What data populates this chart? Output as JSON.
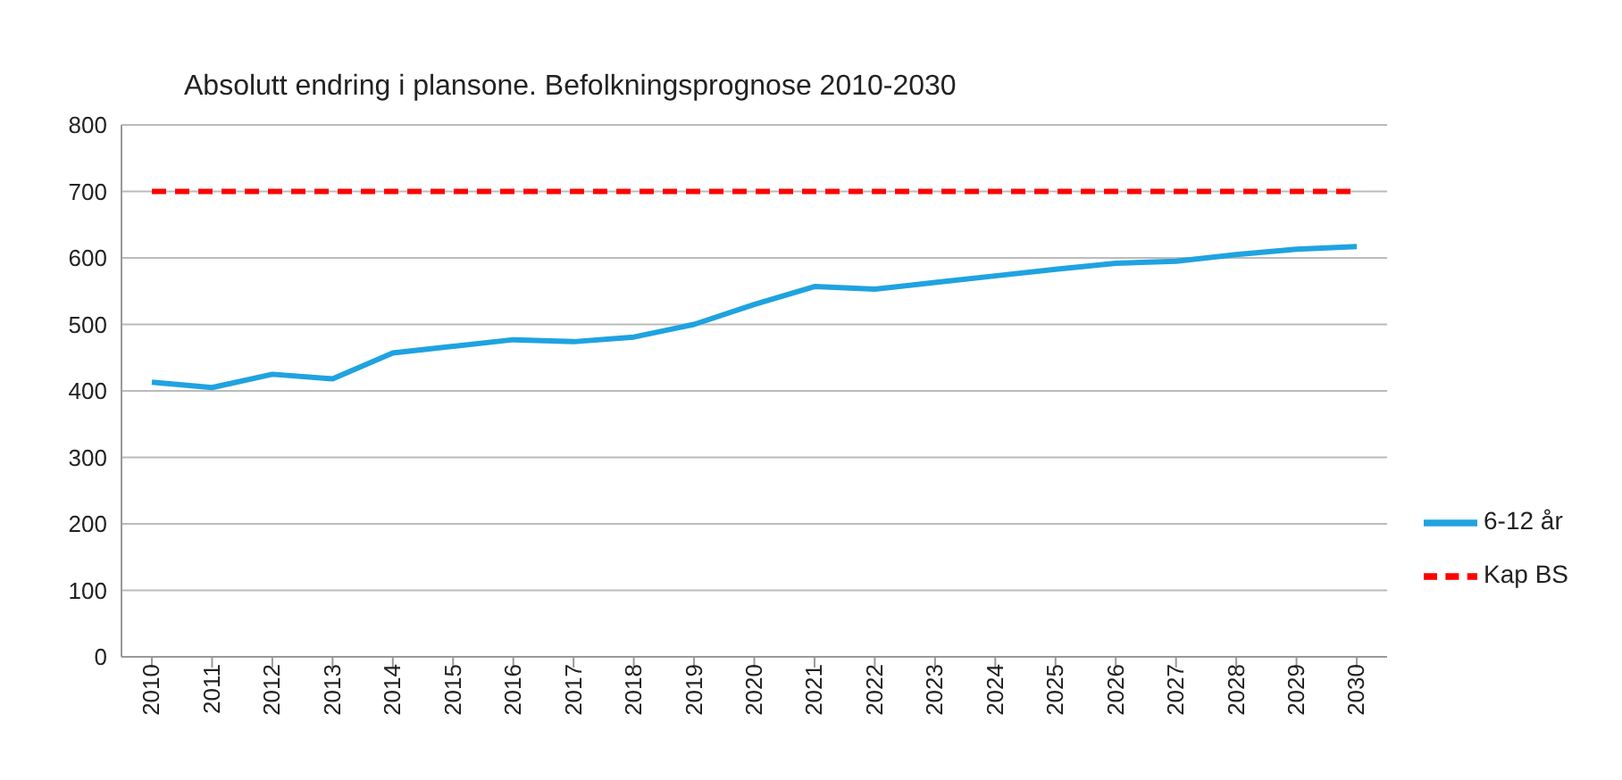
{
  "chart_data": {
    "type": "line",
    "title": "Absolutt endring i plansone. Befolkningsprognose 2010-2030",
    "categories": [
      "2010",
      "2011",
      "2012",
      "2013",
      "2014",
      "2015",
      "2016",
      "2017",
      "2018",
      "2019",
      "2020",
      "2021",
      "2022",
      "2023",
      "2024",
      "2025",
      "2026",
      "2027",
      "2028",
      "2029",
      "2030"
    ],
    "series": [
      {
        "name": "6-12 år",
        "color": "#1fa3e0",
        "line_style": "solid",
        "values": [
          413,
          405,
          425,
          418,
          457,
          467,
          477,
          474,
          481,
          500,
          530,
          557,
          553,
          563,
          573,
          583,
          592,
          595,
          605,
          613,
          617
        ]
      },
      {
        "name": "Kap BS",
        "color": "#ff0000",
        "line_style": "dashed",
        "values": [
          700,
          700,
          700,
          700,
          700,
          700,
          700,
          700,
          700,
          700,
          700,
          700,
          700,
          700,
          700,
          700,
          700,
          700,
          700,
          700,
          700
        ]
      }
    ],
    "ylim": [
      0,
      800
    ],
    "yticks": [
      0,
      100,
      200,
      300,
      400,
      500,
      600,
      700,
      800
    ],
    "grid": "y",
    "legend": "right",
    "marker": "none"
  }
}
